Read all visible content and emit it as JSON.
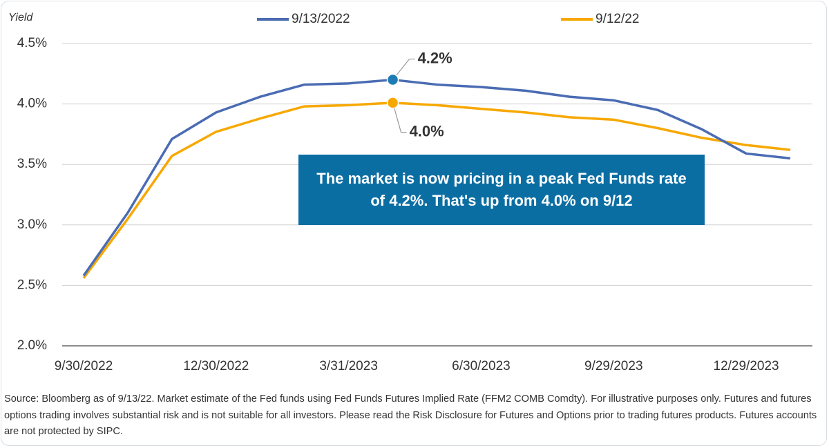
{
  "chart_data": {
    "type": "line",
    "y_axis_label": "Yield",
    "categories": [
      "9/30/2022",
      null,
      null,
      "12/30/2022",
      null,
      null,
      "3/31/2023",
      null,
      null,
      "6/30/2023",
      null,
      null,
      "9/29/2023",
      null,
      null,
      "12/29/2023",
      null
    ],
    "series": [
      {
        "name": "9/13/2022",
        "color": "#4a6cb3",
        "values": [
          2.58,
          3.1,
          3.71,
          3.93,
          4.06,
          4.16,
          4.17,
          4.2,
          4.16,
          4.14,
          4.11,
          4.06,
          4.03,
          3.95,
          3.79,
          3.59,
          3.55
        ],
        "value_labels": [
          null,
          null,
          null,
          null,
          null,
          null,
          null,
          "4.2%",
          null,
          null,
          null,
          null,
          null,
          null,
          null,
          null,
          null
        ],
        "label_color": "#1f7bb3"
      },
      {
        "name": "9/12/22",
        "color": "#f7a800",
        "values": [
          2.56,
          3.05,
          3.57,
          3.77,
          3.88,
          3.98,
          3.99,
          4.01,
          3.99,
          3.96,
          3.93,
          3.89,
          3.87,
          3.8,
          3.72,
          3.66,
          3.62
        ],
        "value_labels": [
          null,
          null,
          null,
          null,
          null,
          null,
          null,
          "4.0%",
          null,
          null,
          null,
          null,
          null,
          null,
          null,
          null,
          null
        ],
        "label_color": "#f5a300"
      }
    ],
    "ylim": [
      2.0,
      4.5
    ],
    "yticks": [
      {
        "value": 2.0,
        "label": "2.0%"
      },
      {
        "value": 2.5,
        "label": "2.5%"
      },
      {
        "value": 3.0,
        "label": "3.0%"
      },
      {
        "value": 3.5,
        "label": "3.5%"
      },
      {
        "value": 4.0,
        "label": "4.0%"
      },
      {
        "value": 4.5,
        "label": "4.5%"
      }
    ],
    "grid": true,
    "legend": "top",
    "callout": "The market is now pricing in a peak Fed Funds rate of 4.2%. That's up from 4.0% on 9/12",
    "callout_color": "#0b6ea3",
    "footnote": "Source: Bloomberg as of 9/13/22. Market estimate of the Fed funds using Fed Funds Futures Implied Rate (FFM2 COMB Comdty). For illustrative purposes only. Futures and futures options trading involves substantial risk and is not suitable for all investors. Please read the Risk Disclosure for Futures and Options prior to trading futures products. Futures accounts are not protected by SIPC."
  }
}
